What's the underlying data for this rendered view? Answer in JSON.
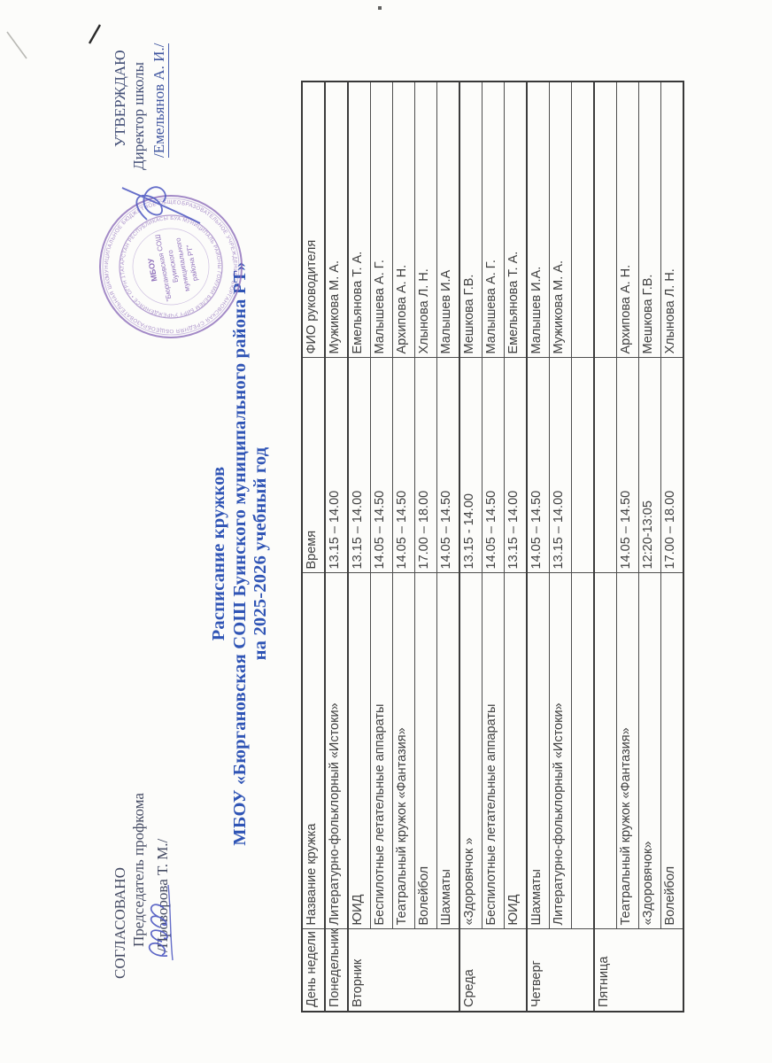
{
  "document": {
    "approval_left": {
      "title": "СОГЛАСОВАНО",
      "role": "Председатель профкома",
      "name": "/Проворова Т. М./"
    },
    "approval_right": {
      "title": "УТВЕРЖДАЮ",
      "role": "Директор школы",
      "name": "/Емельянов А. И./"
    },
    "title": {
      "line1": "Расписание кружков",
      "line2": "МБОУ «Бюргановская СОШ Буинского муниципального района РТ»",
      "line3": "на 2025-2026 учебный год"
    },
    "stamp": {
      "outer_ring": "МУНИЦИПАЛЬНОЕ БЮДЖЕТНОЕ ОБЩЕОБРАЗОВАТЕЛЬНОЕ УЧРЕЖДЕНИЕ \"БЮРГАНОВСКАЯ СРЕДНЯЯ ОБЩЕОБРАЗОВАТЕЛЬНАЯ ШКОЛА\" БУИНСКОГО МУНИЦИПАЛЬНОГО РАЙОНА",
      "inner_ring": "ТАТАРСТАН РЕСПУБЛИКАСЫ БУА МУНИЦИПАЛЬ РАЙОНЫ ГОМУМИ БЕЛЕМ БИРҮ УЧРЕЖДЕНИЯСЕ • ОГРН 1021606554667 •",
      "center_lines": [
        "МБОУ",
        "\"Бюргановская СОШ",
        "Буинского",
        "муниципального",
        "района РТ\""
      ]
    },
    "colors": {
      "title_blue": "#2f54b5",
      "stamp_purple": "#8b6ab8",
      "ink_blue": "#4a55c0",
      "table_text": "#404040"
    }
  },
  "table": {
    "headers": [
      "День недели",
      "Название кружка",
      "Время",
      "ФИО руководителя"
    ],
    "groups": [
      {
        "day": "Понедельник",
        "rows": [
          [
            "Литературно-фольклорный «Истоки»",
            "13.15 – 14.00",
            "Мужикова М. А."
          ]
        ]
      },
      {
        "day": "Вторник",
        "rows": [
          [
            "ЮИД",
            "13.15 – 14.00",
            "Емельянова Т. А."
          ],
          [
            "Беспилотные летательные аппараты",
            "14.05 – 14.50",
            "Малышева А. Г."
          ],
          [
            "Театральный кружок «Фантазия»",
            "14.05 – 14.50",
            "Архипова А. Н."
          ],
          [
            "Волейбол",
            "17.00 – 18.00",
            "Хлынова Л. Н."
          ],
          [
            "Шахматы",
            "14.05 – 14.50",
            "Малышев И.А"
          ]
        ]
      },
      {
        "day": "Среда",
        "rows": [
          [
            "«Здоровячок »",
            "13.15 - 14.00",
            "Мешкова Г.В."
          ],
          [
            "Беспилотные летательные аппараты",
            "14.05 – 14.50",
            "Малышева А. Г."
          ],
          [
            "ЮИД",
            "13.15 – 14.00",
            "Емельянова Т. А."
          ]
        ]
      },
      {
        "day": "Четверг",
        "rows": [
          [
            "Шахматы",
            "14.05 – 14.50",
            "Малышев И.А."
          ],
          [
            "Литературно-фольклорный «Истоки»",
            "13.15 – 14.00",
            "Мужикова М. А."
          ],
          [
            "",
            "",
            ""
          ]
        ]
      },
      {
        "day": "Пятница",
        "rows": [
          [
            "",
            "",
            ""
          ],
          [
            "Театральный кружок «Фантазия»",
            "14.05 – 14.50",
            "Архипова А. Н."
          ],
          [
            "«Здоровячок»",
            "12:20-13:05",
            "Мешкова Г.В."
          ],
          [
            "Волейбол",
            "17.00 – 18.00",
            "Хлынова Л. Н."
          ]
        ]
      }
    ]
  }
}
